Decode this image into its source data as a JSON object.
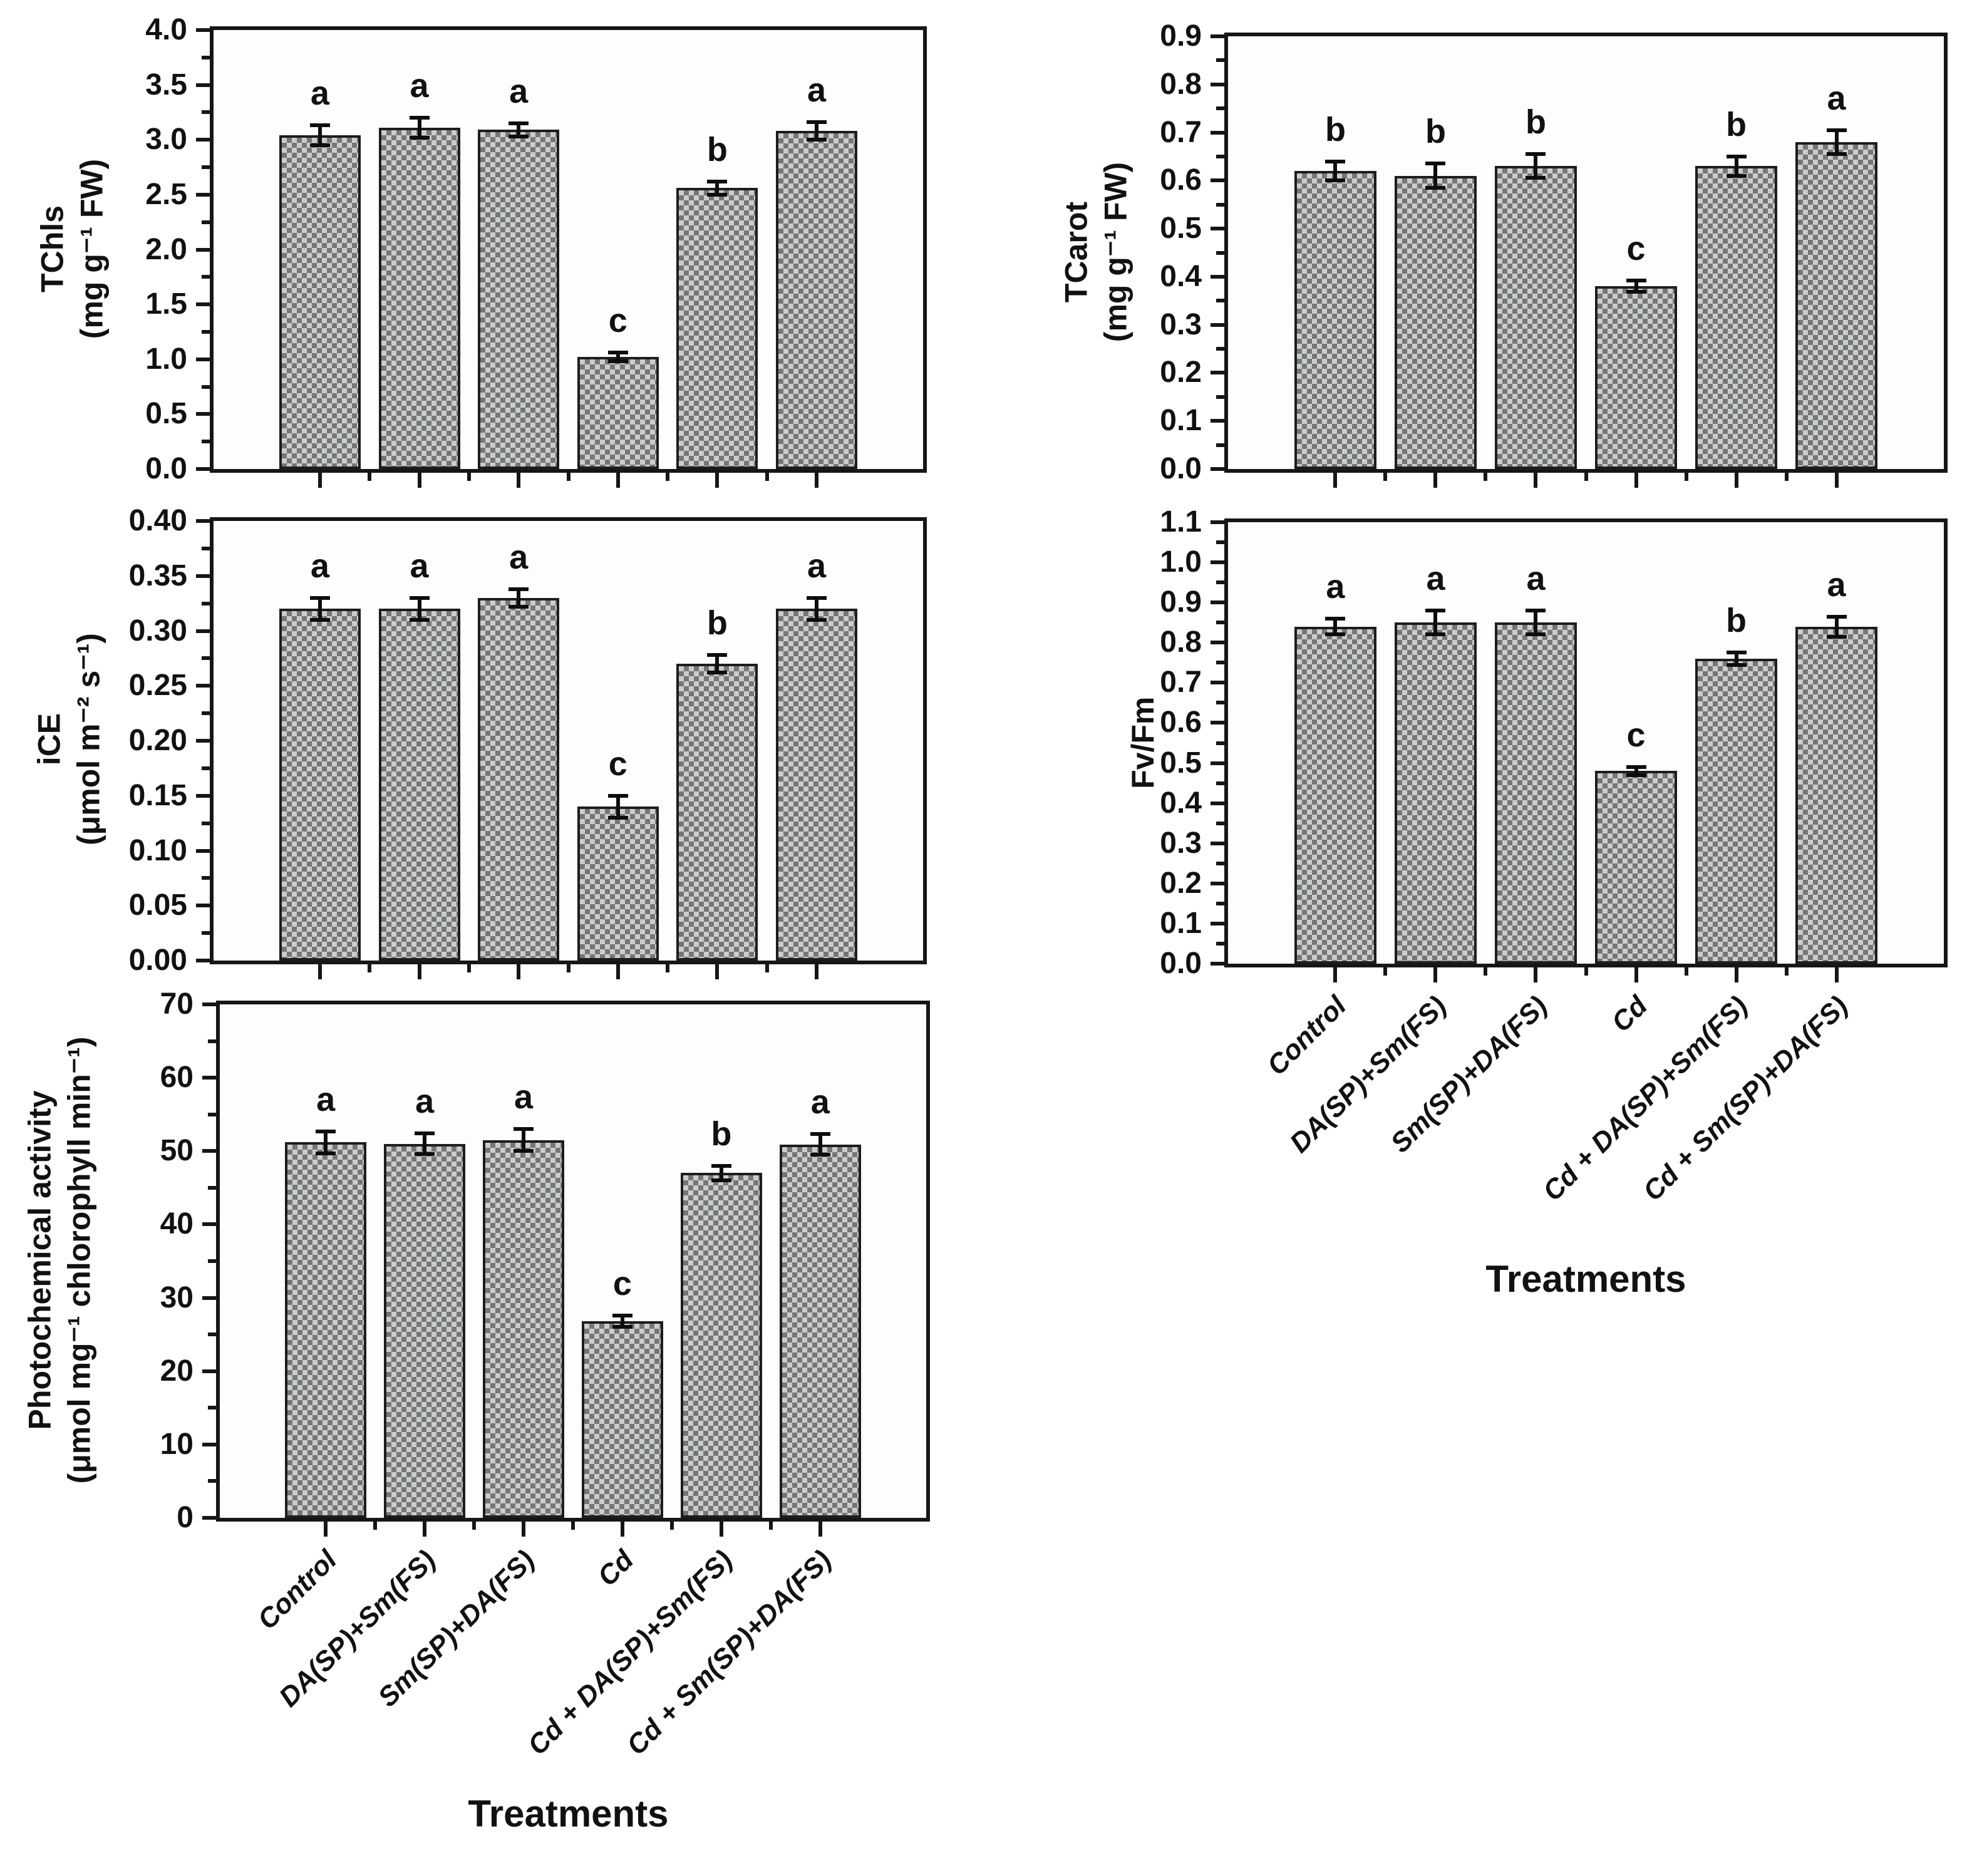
{
  "figure": {
    "background": "#ffffff",
    "axis_color": "#161616",
    "bar_pattern_dark": "#767676",
    "bar_pattern_light": "#c9cecc",
    "bar_border": "#1d1d1d",
    "error_bar_color": "#0d0d0d"
  },
  "categories": [
    "Control",
    "DA(SP)+Sm(FS)",
    "Sm(SP)+DA(FS)",
    "Cd",
    "Cd + DA(SP)+Sm(FS)",
    "Cd + Sm(SP)+DA(FS)"
  ],
  "chart_data": [
    {
      "type": "bar",
      "id": "tchls",
      "ylabel_lines": [
        "TChls",
        "(mg g⁻¹ FW)"
      ],
      "ylim": [
        0,
        4.0
      ],
      "yticks": [
        "0.0",
        "0.5",
        "1.0",
        "1.5",
        "2.0",
        "2.5",
        "3.0",
        "3.5",
        "4.0"
      ],
      "values": [
        3.04,
        3.11,
        3.09,
        1.02,
        2.56,
        3.08
      ],
      "errors": [
        0.09,
        0.09,
        0.06,
        0.04,
        0.06,
        0.08
      ],
      "letters": [
        "a",
        "a",
        "a",
        "c",
        "b",
        "a"
      ],
      "show_x_labels": false
    },
    {
      "type": "bar",
      "id": "ice",
      "ylabel_lines": [
        "iCE",
        "(μmol m⁻² s⁻¹)"
      ],
      "ylim": [
        0,
        0.4
      ],
      "yticks": [
        "0.00",
        "0.05",
        "0.10",
        "0.15",
        "0.20",
        "0.25",
        "0.30",
        "0.35",
        "0.40"
      ],
      "values": [
        0.32,
        0.32,
        0.33,
        0.14,
        0.27,
        0.32
      ],
      "errors": [
        0.01,
        0.01,
        0.008,
        0.01,
        0.008,
        0.01
      ],
      "letters": [
        "a",
        "a",
        "a",
        "c",
        "b",
        "a"
      ],
      "show_x_labels": false
    },
    {
      "type": "bar",
      "id": "photochemical",
      "ylabel_lines": [
        "Photochemical activity",
        "(μmol mg⁻¹ chlorophyll min⁻¹)"
      ],
      "ylim": [
        0,
        70
      ],
      "yticks": [
        "0",
        "10",
        "20",
        "30",
        "40",
        "50",
        "60",
        "70"
      ],
      "values": [
        51.2,
        51.0,
        51.5,
        26.8,
        47.0,
        50.9
      ],
      "errors": [
        1.5,
        1.4,
        1.5,
        0.8,
        1.0,
        1.4
      ],
      "letters": [
        "a",
        "a",
        "a",
        "c",
        "b",
        "a"
      ],
      "show_x_labels": true,
      "xlabel": "Treatments"
    },
    {
      "type": "bar",
      "id": "tcarot",
      "ylabel_lines": [
        "TCarot",
        "(mg g⁻¹ FW)"
      ],
      "ylim": [
        0,
        0.9
      ],
      "yticks": [
        "0.0",
        "0.1",
        "0.2",
        "0.3",
        "0.4",
        "0.5",
        "0.6",
        "0.7",
        "0.8",
        "0.9"
      ],
      "values": [
        0.62,
        0.61,
        0.63,
        0.38,
        0.63,
        0.68
      ],
      "errors": [
        0.02,
        0.025,
        0.025,
        0.012,
        0.02,
        0.025
      ],
      "letters": [
        "b",
        "b",
        "b",
        "c",
        "b",
        "a"
      ],
      "show_x_labels": false
    },
    {
      "type": "bar",
      "id": "fvfm",
      "ylabel_lines": [
        "Fv/Fm"
      ],
      "ylim": [
        0,
        1.1
      ],
      "yticks": [
        "0.0",
        "0.1",
        "0.2",
        "0.3",
        "0.4",
        "0.5",
        "0.6",
        "0.7",
        "0.8",
        "0.9",
        "1.0",
        "1.1"
      ],
      "values": [
        0.84,
        0.85,
        0.85,
        0.48,
        0.76,
        0.84
      ],
      "errors": [
        0.02,
        0.03,
        0.03,
        0.01,
        0.015,
        0.025
      ],
      "letters": [
        "a",
        "a",
        "a",
        "c",
        "b",
        "a"
      ],
      "show_x_labels": true,
      "xlabel": "Treatments"
    }
  ]
}
